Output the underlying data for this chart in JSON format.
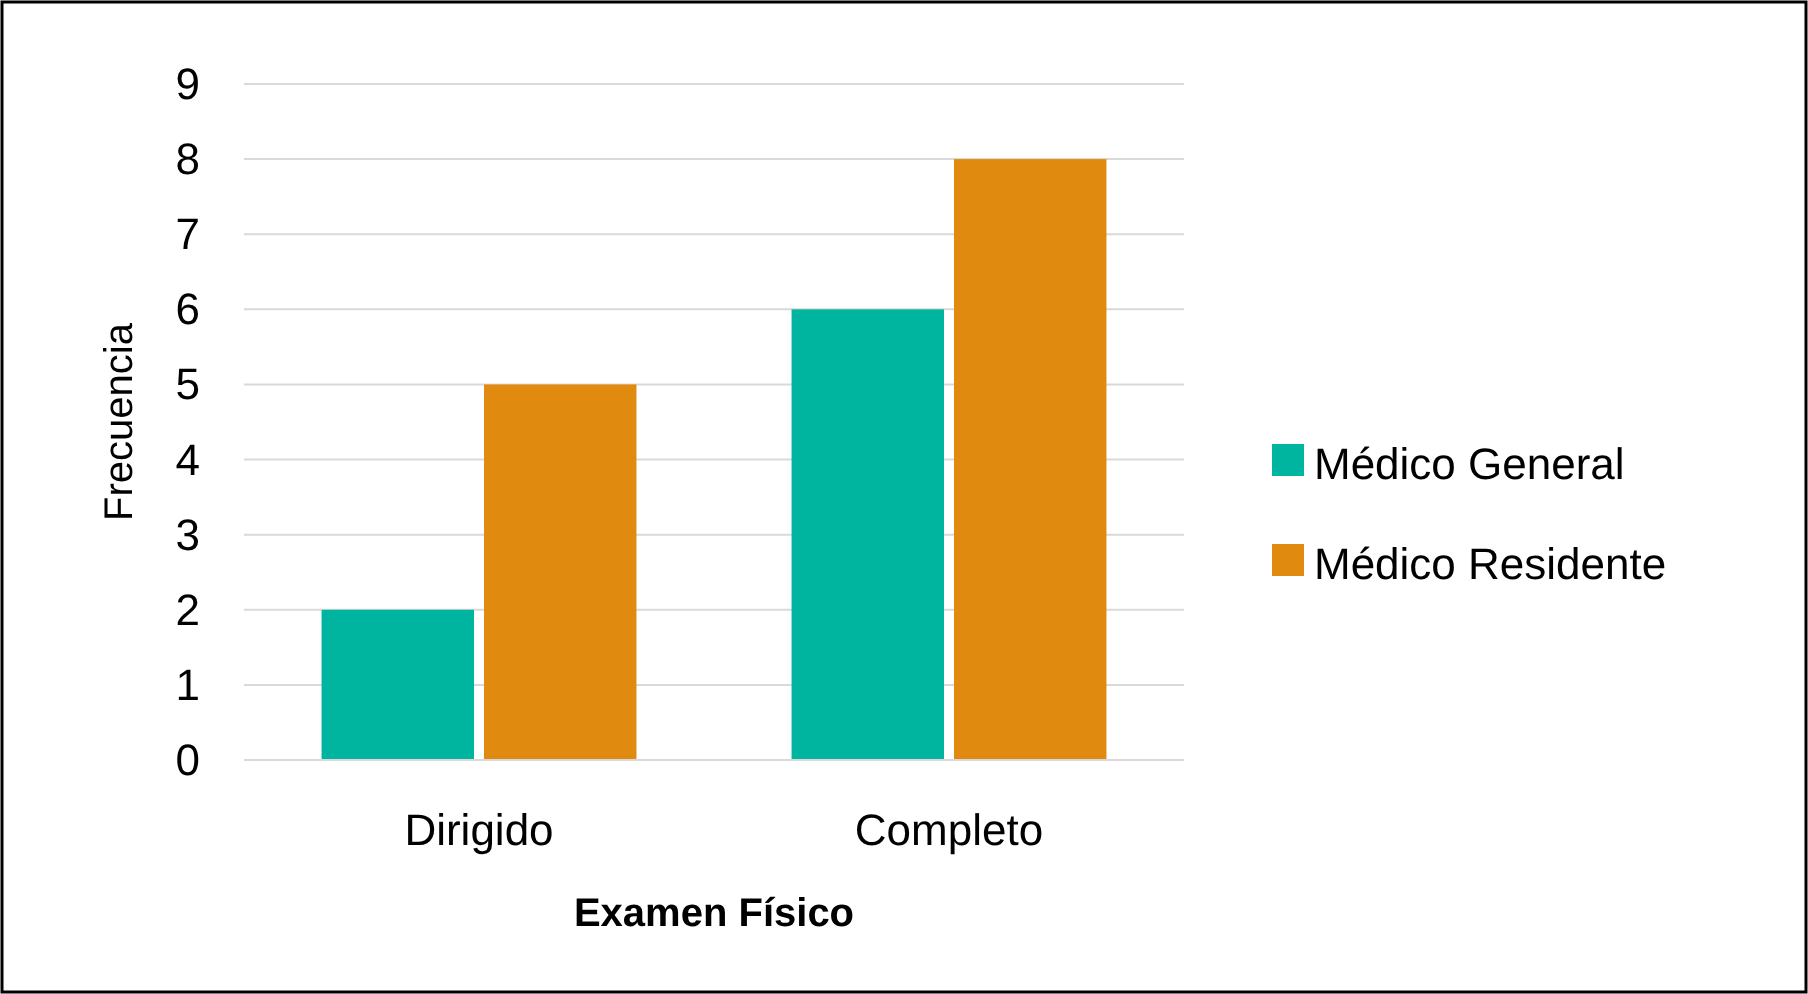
{
  "chart_data": {
    "type": "bar",
    "xlabel": "Examen Físico",
    "ylabel": "Frecuencia",
    "categories": [
      "Dirigido",
      "Completo"
    ],
    "series": [
      {
        "name": "Médico General",
        "color": "#00b5a0",
        "values": [
          2,
          6
        ]
      },
      {
        "name": "Médico Residente",
        "color": "#e08b0f",
        "values": [
          5,
          8
        ]
      }
    ],
    "ylim": [
      0,
      9
    ],
    "yticks": [
      0,
      1,
      2,
      3,
      4,
      5,
      6,
      7,
      8,
      9
    ],
    "grid": "y",
    "legend": "right"
  }
}
